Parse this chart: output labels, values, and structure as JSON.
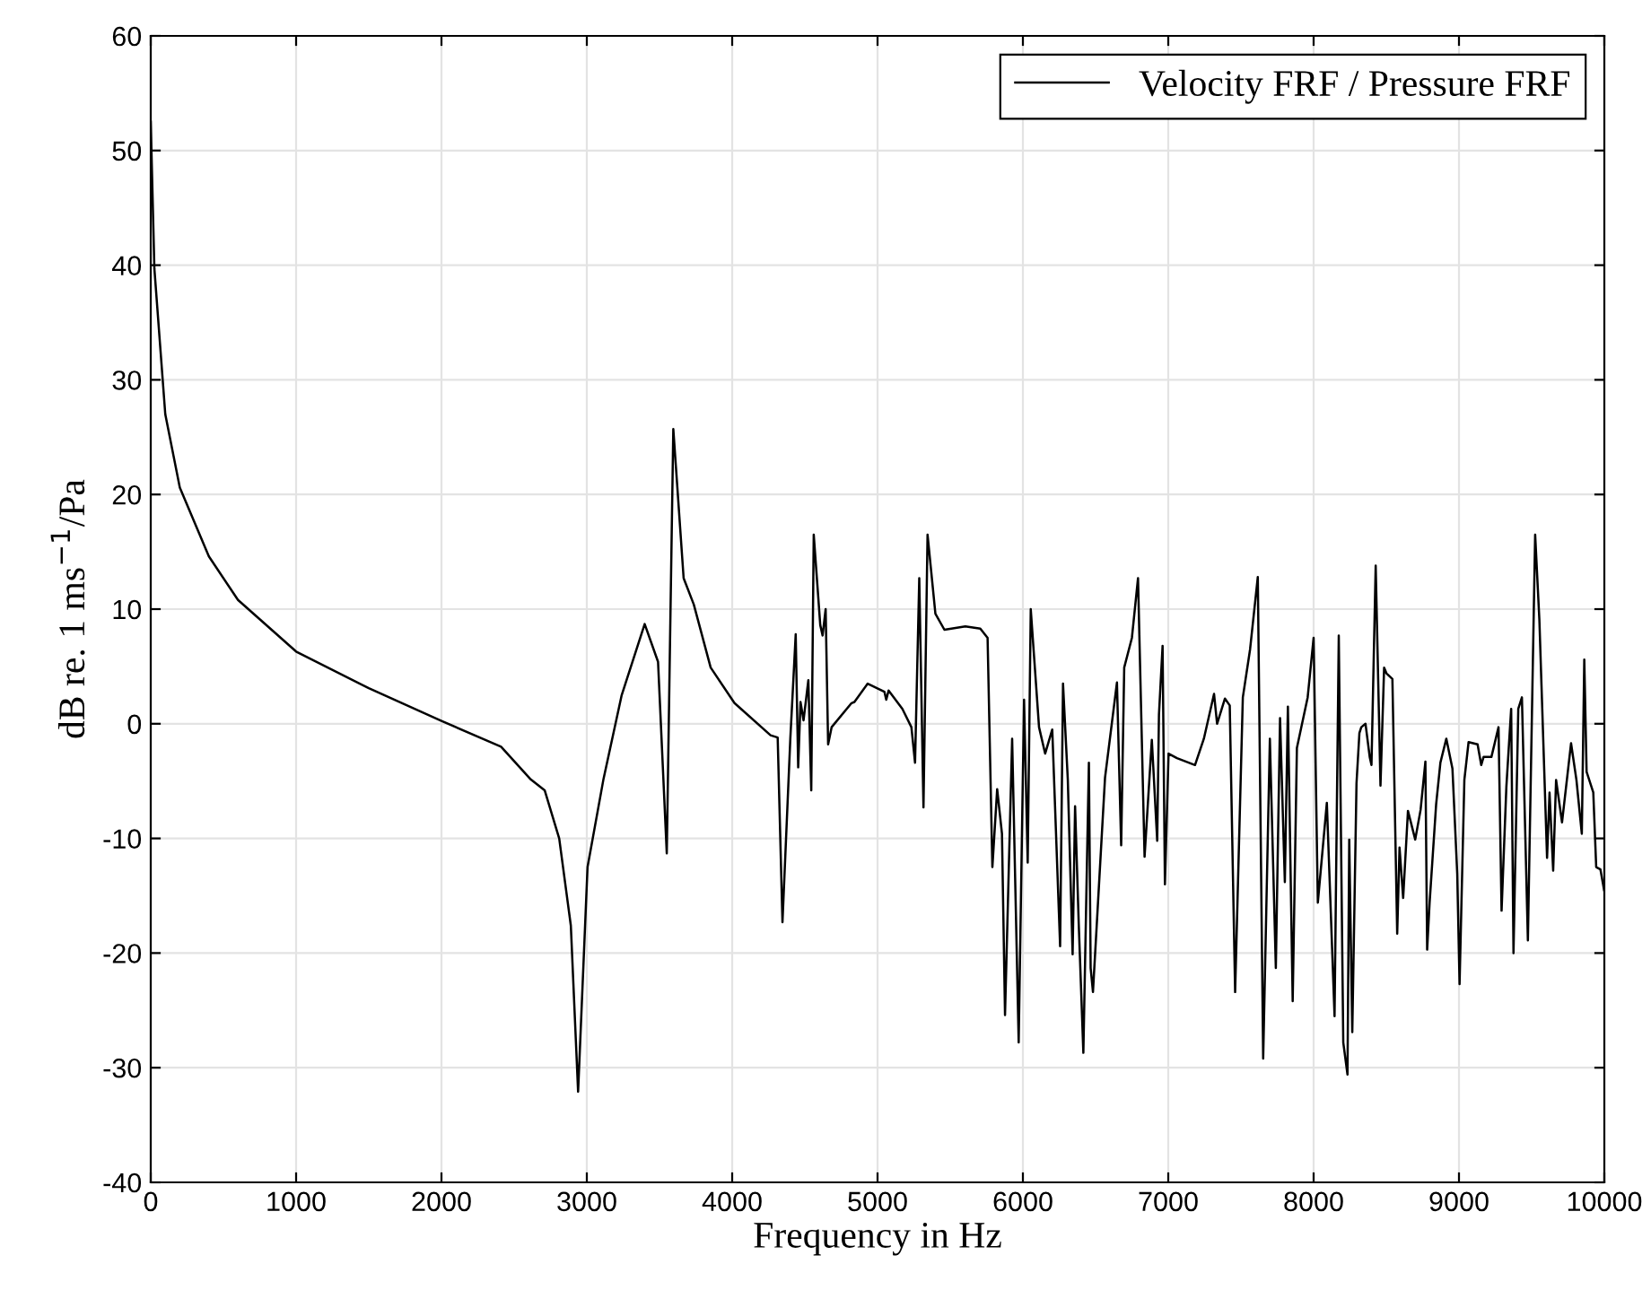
{
  "chart_data": {
    "type": "line",
    "xlabel": "Frequency in Hz",
    "ylabel": "dB re. 1 ms$^{−1}$/Pa",
    "x": [
      0,
      25,
      100,
      200,
      400,
      600,
      1000,
      1500,
      2000,
      2410,
      2610,
      2710,
      2810,
      2890,
      2940,
      3005,
      3115,
      3240,
      3398,
      3490,
      3550,
      3595,
      3666,
      3736,
      3852,
      4016,
      4264,
      4313,
      4346,
      4400,
      4437,
      4454,
      4470,
      4491,
      4524,
      4544,
      4561,
      4606,
      4622,
      4643,
      4660,
      4684,
      4821,
      4841,
      4932,
      5047,
      5060,
      5076,
      5171,
      5233,
      5258,
      5287,
      5316,
      5344,
      5398,
      5460,
      5604,
      5707,
      5757,
      5790,
      5823,
      5856,
      5877,
      5926,
      5971,
      6008,
      6033,
      6054,
      6111,
      6153,
      6202,
      6256,
      6276,
      6309,
      6342,
      6359,
      6384,
      6416,
      6441,
      6454,
      6466,
      6482,
      6565,
      6647,
      6676,
      6697,
      6750,
      6792,
      6837,
      6887,
      6924,
      6936,
      6961,
      6977,
      7002,
      7060,
      7184,
      7245,
      7315,
      7336,
      7390,
      7423,
      7460,
      7513,
      7563,
      7616,
      7653,
      7699,
      7740,
      7769,
      7802,
      7823,
      7856,
      7885,
      7959,
      8000,
      8029,
      8091,
      8144,
      8173,
      8204,
      8233,
      8245,
      8266,
      8295,
      8315,
      8328,
      8357,
      8386,
      8398,
      8427,
      8460,
      8485,
      8501,
      8542,
      8575,
      8591,
      8616,
      8649,
      8699,
      8736,
      8769,
      8781,
      8798,
      8843,
      8872,
      8913,
      8955,
      8988,
      9004,
      9037,
      9066,
      9128,
      9153,
      9169,
      9223,
      9272,
      9293,
      9326,
      9359,
      9375,
      9408,
      9433,
      9474,
      9524,
      9553,
      9606,
      9623,
      9648,
      9668,
      9709,
      9771,
      9808,
      9845,
      9862,
      9878,
      9924,
      9944,
      9973,
      9998
    ],
    "series": [
      {
        "name": "Velocity FRF / Pressure FRF",
        "color": "#000000",
        "values": [
          52.5,
          39.7,
          27,
          20.6,
          14.6,
          10.8,
          6.3,
          3.1,
          0.25,
          -2,
          -4.8,
          -5.8,
          -10,
          -17.6,
          -32.1,
          -12.5,
          -4.8,
          2.5,
          8.7,
          5.4,
          -11.3,
          25.7,
          12.7,
          10.4,
          4.9,
          1.8,
          -1,
          -1.2,
          -17.3,
          -1.3,
          7.8,
          -3.8,
          1.9,
          0.3,
          3.8,
          -5.8,
          16.5,
          8.6,
          7.7,
          10,
          -1.8,
          -0.3,
          1.8,
          1.9,
          3.5,
          2.8,
          2.1,
          2.9,
          1.3,
          -0.3,
          -3.4,
          12.7,
          -7.3,
          16.5,
          9.6,
          8.2,
          8.5,
          8.3,
          7.5,
          -12.5,
          -5.7,
          -9.6,
          -25.4,
          -1.3,
          -27.8,
          2.1,
          -12.1,
          10,
          -0.3,
          -2.6,
          -0.5,
          -19.4,
          3.5,
          -4.9,
          -20.1,
          -7.2,
          -17.4,
          -28.7,
          -11.9,
          -3.4,
          -21.3,
          -23.4,
          -4.7,
          3.6,
          -10.6,
          4.9,
          7.5,
          12.7,
          -11.6,
          -1.4,
          -10.2,
          0.8,
          6.8,
          -14,
          -2.6,
          -3,
          -3.6,
          -1.3,
          2.6,
          0,
          2.2,
          1.6,
          -23.4,
          2.3,
          6.5,
          12.8,
          -29.2,
          -1.3,
          -21.3,
          0.5,
          -13.8,
          1.5,
          -24.2,
          -2.1,
          2.3,
          7.5,
          -15.6,
          -6.9,
          -25.5,
          7.7,
          -27.8,
          -30.6,
          -10.1,
          -26.9,
          -5.2,
          -0.8,
          -0.3,
          0,
          -2.9,
          -3.6,
          13.8,
          -5.4,
          4.9,
          4.4,
          3.9,
          -18.3,
          -10.8,
          -15.2,
          -7.6,
          -10.1,
          -7.5,
          -3.3,
          -19.7,
          -15.6,
          -7,
          -3.4,
          -1.3,
          -3.9,
          -13.1,
          -22.7,
          -4.9,
          -1.6,
          -1.8,
          -3.6,
          -2.9,
          -2.9,
          -0.3,
          -16.3,
          -5.5,
          1.3,
          -20,
          1.3,
          2.3,
          -18.9,
          16.5,
          9.1,
          -11.7,
          -6,
          -12.8,
          -4.9,
          -8.6,
          -1.7,
          -4.9,
          -9.6,
          5.6,
          -4.2,
          -6,
          -12.5,
          -12.7,
          -14.5
        ]
      }
    ],
    "xlim": [
      0,
      10000
    ],
    "xticks": [
      0,
      1000,
      2000,
      3000,
      4000,
      5000,
      6000,
      7000,
      8000,
      9000,
      10000
    ],
    "ylim": [
      -40,
      60
    ],
    "yticks": [
      -40,
      -30,
      -20,
      -10,
      0,
      10,
      20,
      30,
      40,
      50,
      60
    ],
    "grid": true,
    "legend": "top right",
    "marker": "none",
    "line_style": "solid"
  }
}
